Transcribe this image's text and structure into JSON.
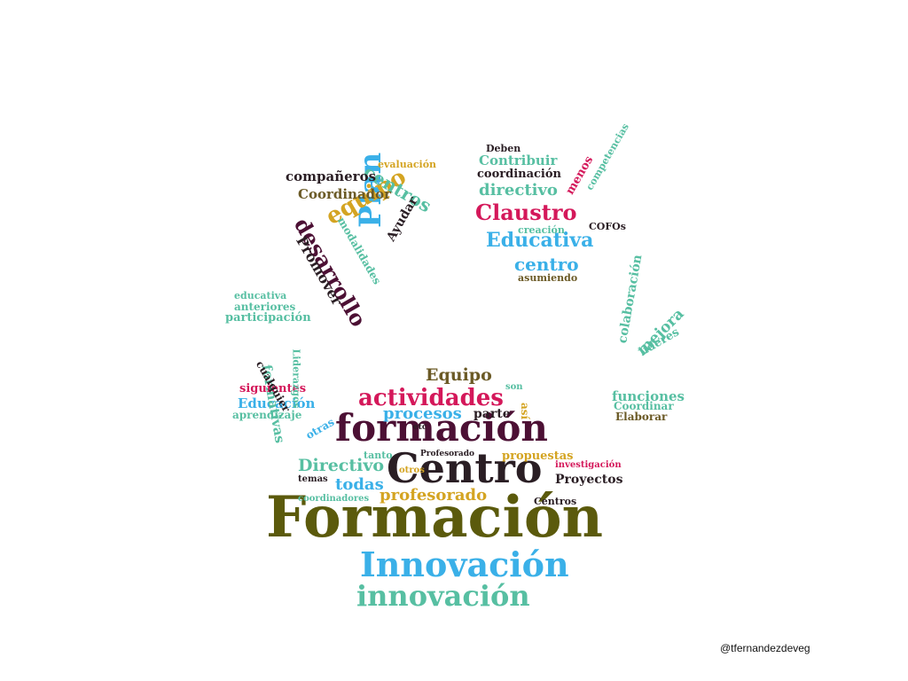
{
  "colors": {
    "olive": "#5b5a0c",
    "blue": "#3ab0e8",
    "teal": "#57bfa2",
    "dark": "#2a1e24",
    "maroon": "#4c1034",
    "crimson": "#d4185a",
    "gold": "#d4a422",
    "brown": "#6b5a26"
  },
  "credit": "@tfernandezdeveg",
  "words": [
    "Formación",
    "Centro",
    "formación",
    "Innovación",
    "innovación",
    "actividades",
    "procesos",
    "profesorado",
    "Directivo",
    "todas",
    "propuestas",
    "Proyectos",
    "Equipo",
    "parte",
    "otras",
    "tanto",
    "Centros",
    "Profesorado",
    "temas",
    "coordinadores",
    "investigación",
    "son",
    "así",
    "etc",
    "otros",
    "Plan",
    "equipo",
    "desarrollo",
    "centros",
    "Promover",
    "Ayudar",
    "compañeros",
    "Coordinador",
    "evaluación",
    "modalidades",
    "Claustro",
    "Educativa",
    "centro",
    "directivo",
    "coordinación",
    "Contribuir",
    "creación",
    "Deben",
    "asumiendo",
    "COFOs",
    "menos",
    "competencias",
    "Educación",
    "formativas",
    "siguientes",
    "participación",
    "anteriores",
    "educativa",
    "aprendizaje",
    "Liderazgos",
    "cualquier",
    "colaboración",
    "mejora",
    "funciones",
    "líderes",
    "Coordinar",
    "Elaborar"
  ]
}
